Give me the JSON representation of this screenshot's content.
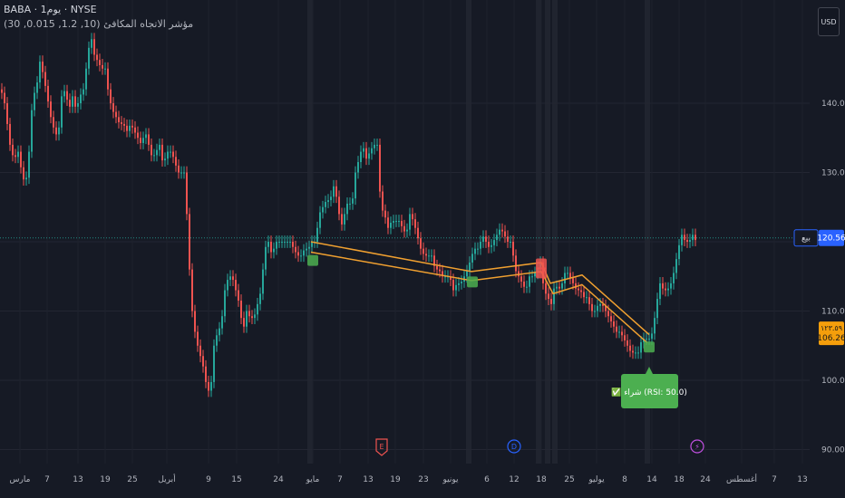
{
  "header": {
    "title": "BABA · 1يوم · NYSE",
    "indicator": "مؤشر الاتجاه المكافئ (10, 1.2, 0.015, 30)",
    "currency": "USD"
  },
  "badges": {
    "current_price": "120.56",
    "current_label": "بيع",
    "secondary_price": "106.26",
    "secondary_top": "١٢٣.٥٩"
  },
  "signal_label": "✅ شراء (RSI: 50.0)",
  "events": [
    "E",
    "D",
    "⚡"
  ],
  "chart_data": {
    "type": "candlestick",
    "title": "",
    "ylim": [
      88,
      157
    ],
    "y_ticks": [
      90,
      100,
      110,
      120,
      130,
      140
    ],
    "y_tick_labels": [
      "90.00",
      "100.00",
      "110.00",
      "120.00",
      "130.00",
      "140.00"
    ],
    "x_tick_labels": [
      "مارس",
      "7",
      "13",
      "19",
      "25",
      "أبريل",
      "9",
      "15",
      "24",
      "مايو",
      "7",
      "13",
      "19",
      "23",
      "يونيو",
      "6",
      "12",
      "18",
      "25",
      "يوليو",
      "8",
      "14",
      "18",
      "24",
      "أغسطس",
      "7",
      "13"
    ],
    "close_path": [
      [
        0,
        142
      ],
      [
        4,
        141
      ],
      [
        8,
        137
      ],
      [
        12,
        133
      ],
      [
        16,
        132
      ],
      [
        20,
        133
      ],
      [
        24,
        130
      ],
      [
        28,
        128
      ],
      [
        32,
        133
      ],
      [
        36,
        141
      ],
      [
        40,
        142
      ],
      [
        44,
        146
      ],
      [
        48,
        144
      ],
      [
        52,
        141
      ],
      [
        56,
        138
      ],
      [
        60,
        136
      ],
      [
        64,
        135
      ],
      [
        68,
        141
      ],
      [
        72,
        142
      ],
      [
        76,
        139
      ],
      [
        80,
        141
      ],
      [
        84,
        139
      ],
      [
        88,
        141
      ],
      [
        92,
        142
      ],
      [
        96,
        146
      ],
      [
        100,
        150
      ],
      [
        104,
        147
      ],
      [
        108,
        146
      ],
      [
        112,
        145
      ],
      [
        116,
        145
      ],
      [
        120,
        141
      ],
      [
        124,
        139
      ],
      [
        128,
        138
      ],
      [
        132,
        137
      ],
      [
        136,
        137
      ],
      [
        140,
        136
      ],
      [
        144,
        137
      ],
      [
        148,
        136
      ],
      [
        152,
        135
      ],
      [
        156,
        134
      ],
      [
        160,
        136
      ],
      [
        164,
        134
      ],
      [
        168,
        132
      ],
      [
        172,
        133
      ],
      [
        176,
        134
      ],
      [
        180,
        131
      ],
      [
        184,
        133
      ],
      [
        188,
        133
      ],
      [
        192,
        132
      ],
      [
        196,
        130
      ],
      [
        200,
        130
      ],
      [
        204,
        130
      ],
      [
        208,
        118
      ],
      [
        212,
        110
      ],
      [
        216,
        106
      ],
      [
        220,
        104
      ],
      [
        224,
        102
      ],
      [
        228,
        99
      ],
      [
        232,
        98
      ],
      [
        236,
        105
      ],
      [
        240,
        107
      ],
      [
        244,
        108
      ],
      [
        248,
        113
      ],
      [
        252,
        115
      ],
      [
        256,
        115
      ],
      [
        260,
        113
      ],
      [
        264,
        111
      ],
      [
        268,
        107
      ],
      [
        272,
        110
      ],
      [
        276,
        109
      ],
      [
        280,
        109
      ],
      [
        284,
        111
      ],
      [
        288,
        113
      ],
      [
        292,
        119
      ],
      [
        296,
        120
      ],
      [
        300,
        118
      ],
      [
        304,
        120
      ],
      [
        308,
        120
      ],
      [
        312,
        120
      ],
      [
        316,
        120
      ],
      [
        320,
        120
      ],
      [
        324,
        119
      ],
      [
        328,
        118
      ],
      [
        332,
        118
      ],
      [
        336,
        119
      ],
      [
        340,
        119
      ],
      [
        344,
        120
      ],
      [
        348,
        120
      ],
      [
        352,
        124
      ],
      [
        356,
        125
      ],
      [
        360,
        126
      ],
      [
        364,
        126
      ],
      [
        368,
        128
      ],
      [
        372,
        126
      ],
      [
        376,
        122
      ],
      [
        380,
        124
      ],
      [
        384,
        126
      ],
      [
        388,
        125
      ],
      [
        392,
        130
      ],
      [
        396,
        132
      ],
      [
        400,
        134
      ],
      [
        404,
        132
      ],
      [
        408,
        133
      ],
      [
        412,
        134
      ],
      [
        416,
        134
      ],
      [
        420,
        125
      ],
      [
        424,
        124
      ],
      [
        428,
        122
      ],
      [
        432,
        123
      ],
      [
        436,
        123
      ],
      [
        440,
        123
      ],
      [
        444,
        122
      ],
      [
        448,
        121
      ],
      [
        452,
        124
      ],
      [
        456,
        123
      ],
      [
        460,
        121
      ],
      [
        464,
        119
      ],
      [
        468,
        118
      ],
      [
        472,
        118
      ],
      [
        476,
        118
      ],
      [
        480,
        116
      ],
      [
        484,
        116
      ],
      [
        488,
        115
      ],
      [
        492,
        115
      ],
      [
        496,
        115
      ],
      [
        500,
        113
      ],
      [
        504,
        114
      ],
      [
        508,
        114
      ],
      [
        512,
        115
      ],
      [
        516,
        116
      ],
      [
        520,
        118
      ],
      [
        524,
        119
      ],
      [
        528,
        119
      ],
      [
        532,
        121
      ],
      [
        536,
        120
      ],
      [
        540,
        119
      ],
      [
        544,
        120
      ],
      [
        548,
        121
      ],
      [
        552,
        122
      ],
      [
        556,
        121
      ],
      [
        560,
        120
      ],
      [
        564,
        120
      ],
      [
        568,
        116
      ],
      [
        572,
        115
      ],
      [
        576,
        114
      ],
      [
        580,
        113
      ],
      [
        584,
        115
      ],
      [
        588,
        115
      ],
      [
        592,
        116
      ],
      [
        596,
        117
      ],
      [
        600,
        113
      ],
      [
        604,
        112
      ],
      [
        608,
        111
      ],
      [
        612,
        114
      ],
      [
        616,
        113
      ],
      [
        620,
        114
      ],
      [
        624,
        116
      ],
      [
        628,
        115
      ],
      [
        632,
        114
      ],
      [
        636,
        113
      ],
      [
        640,
        113
      ],
      [
        644,
        112
      ],
      [
        648,
        112
      ],
      [
        652,
        110
      ],
      [
        656,
        110
      ],
      [
        660,
        111
      ],
      [
        664,
        111
      ],
      [
        668,
        110
      ],
      [
        672,
        109
      ],
      [
        676,
        108
      ],
      [
        680,
        107
      ],
      [
        684,
        107
      ],
      [
        688,
        106
      ],
      [
        692,
        105
      ],
      [
        696,
        104
      ],
      [
        700,
        104
      ],
      [
        704,
        104
      ],
      [
        708,
        106
      ],
      [
        712,
        106
      ],
      [
        716,
        106
      ],
      [
        720,
        107
      ],
      [
        724,
        111
      ],
      [
        728,
        114
      ],
      [
        732,
        113
      ],
      [
        736,
        113
      ],
      [
        740,
        114
      ],
      [
        744,
        116
      ],
      [
        748,
        119
      ],
      [
        752,
        121
      ],
      [
        756,
        120
      ],
      [
        760,
        120
      ],
      [
        764,
        121
      ],
      [
        768,
        120
      ]
    ],
    "sar_upper": [
      [
        343,
        120
      ],
      [
        520,
        115.7
      ],
      [
        597,
        117
      ],
      [
        607,
        114
      ],
      [
        642,
        115.2
      ],
      [
        716,
        106.6
      ]
    ],
    "sar_lower": [
      [
        343,
        118.5
      ],
      [
        520,
        114.4
      ],
      [
        597,
        115.7
      ],
      [
        610,
        112.5
      ],
      [
        642,
        113.8
      ],
      [
        714,
        105.4
      ]
    ],
    "signals": [
      {
        "x": 345,
        "price": 117.3,
        "kind": "buy"
      },
      {
        "x": 521,
        "price": 114.2,
        "kind": "buy"
      },
      {
        "x": 597,
        "price": 116.8,
        "kind": "sell"
      },
      {
        "x": 597,
        "price": 115.5,
        "kind": "sell"
      },
      {
        "x": 716,
        "price": 104.8,
        "kind": "buy"
      }
    ],
    "current_price": 120.56,
    "secondary_price": 106.26,
    "highlight_x": [
      342,
      517,
      594,
      604,
      612,
      714
    ]
  }
}
